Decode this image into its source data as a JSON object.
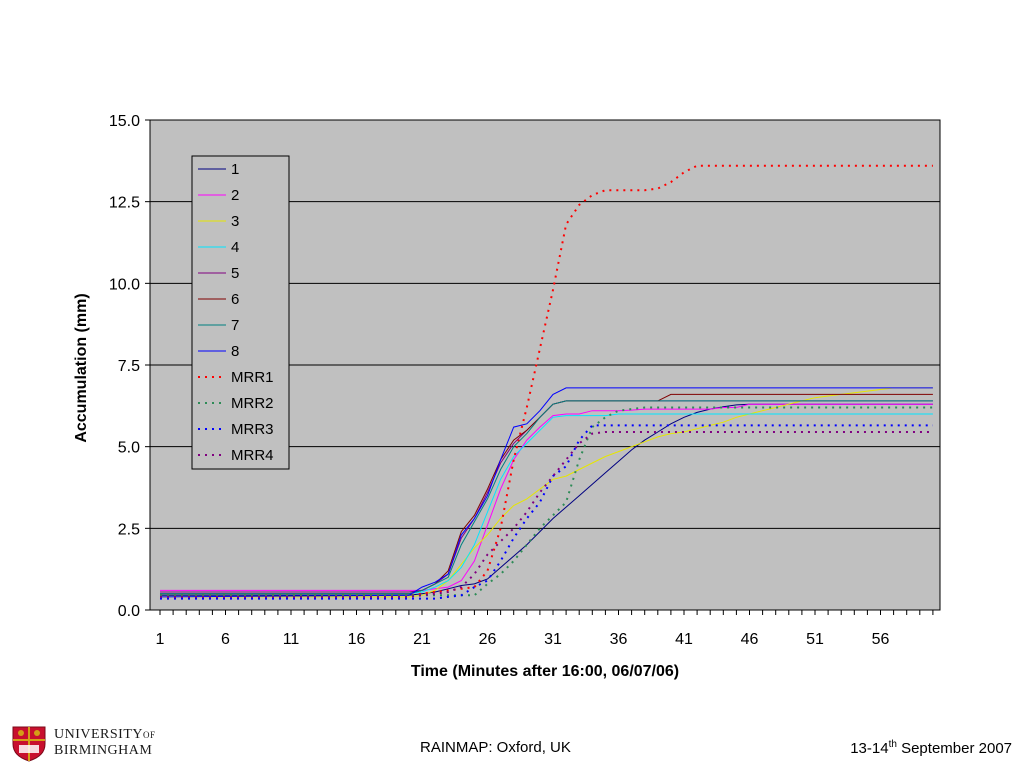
{
  "chart_data": {
    "type": "line",
    "xlabel": "Time (Minutes after 16:00, 06/07/06)",
    "ylabel": "Accumulation (mm)",
    "xlim": [
      1,
      60
    ],
    "ylim": [
      0,
      15
    ],
    "y_ticks": [
      "0.0",
      "2.5",
      "5.0",
      "7.5",
      "10.0",
      "12.5",
      "15.0"
    ],
    "x_ticks": [
      "1",
      "6",
      "11",
      "16",
      "21",
      "26",
      "31",
      "36",
      "41",
      "46",
      "51",
      "56"
    ],
    "grid": "horizontal",
    "background": "#c0c0c0",
    "legend_position": "top-left",
    "series": [
      {
        "name": "1",
        "color": "#000080",
        "style": "solid",
        "x": [
          1,
          19,
          20,
          21,
          22,
          23,
          24,
          25,
          26,
          27,
          28,
          29,
          30,
          31,
          32,
          33,
          34,
          35,
          36,
          37,
          38,
          39,
          40,
          41,
          42,
          43,
          44,
          45,
          46,
          47,
          48,
          49,
          50,
          51,
          52,
          53,
          54,
          55,
          56,
          57,
          58,
          59,
          60
        ],
        "y": [
          0.45,
          0.45,
          0.45,
          0.5,
          0.55,
          0.65,
          0.75,
          0.8,
          0.95,
          1.3,
          1.65,
          2.0,
          2.4,
          2.8,
          3.15,
          3.5,
          3.85,
          4.2,
          4.55,
          4.9,
          5.2,
          5.45,
          5.7,
          5.9,
          6.05,
          6.15,
          6.22,
          6.28,
          6.3,
          6.3,
          6.3,
          6.3,
          6.3,
          6.3,
          6.3,
          6.3,
          6.3,
          6.3,
          6.3,
          6.3,
          6.3,
          6.3,
          6.3
        ]
      },
      {
        "name": "2",
        "color": "#ff00ff",
        "style": "solid",
        "x": [
          1,
          20,
          21,
          22,
          23,
          24,
          25,
          26,
          27,
          28,
          29,
          30,
          31,
          32,
          33,
          34,
          35,
          36,
          37,
          38,
          39,
          40,
          41,
          42,
          43,
          44,
          45,
          46,
          47,
          48,
          49,
          50,
          51,
          52,
          53,
          54,
          55,
          56,
          57,
          58,
          59,
          60
        ],
        "y": [
          0.6,
          0.6,
          0.6,
          0.65,
          0.7,
          0.9,
          1.5,
          2.6,
          3.7,
          4.6,
          5.2,
          5.6,
          5.95,
          6.0,
          6.0,
          6.1,
          6.1,
          6.1,
          6.12,
          6.15,
          6.15,
          6.15,
          6.15,
          6.15,
          6.15,
          6.2,
          6.2,
          6.3,
          6.3,
          6.3,
          6.3,
          6.3,
          6.3,
          6.3,
          6.3,
          6.3,
          6.3,
          6.3,
          6.3,
          6.3,
          6.3,
          6.3
        ]
      },
      {
        "name": "3",
        "color": "#e6e600",
        "style": "solid",
        "x": [
          1,
          20,
          21,
          22,
          23,
          24,
          25,
          26,
          27,
          28,
          29,
          30,
          31,
          32,
          33,
          34,
          35,
          36,
          37,
          38,
          39,
          40,
          41,
          42,
          43,
          44,
          45,
          46,
          47,
          48,
          49,
          50,
          51,
          52,
          53,
          54,
          55,
          56,
          57,
          58,
          59,
          60
        ],
        "y": [
          0.4,
          0.4,
          0.45,
          0.6,
          0.9,
          1.4,
          1.9,
          2.3,
          2.8,
          3.2,
          3.4,
          3.7,
          4.0,
          4.1,
          4.3,
          4.5,
          4.7,
          4.85,
          5.0,
          5.15,
          5.3,
          5.4,
          5.45,
          5.55,
          5.65,
          5.75,
          5.9,
          6.0,
          6.1,
          6.2,
          6.3,
          6.4,
          6.5,
          6.55,
          6.6,
          6.65,
          6.7,
          6.75,
          6.8,
          6.8,
          6.8,
          6.8
        ]
      },
      {
        "name": "4",
        "color": "#00e6ff",
        "style": "solid",
        "x": [
          1,
          20,
          21,
          22,
          23,
          24,
          25,
          26,
          27,
          28,
          29,
          30,
          31,
          32,
          33,
          34,
          35,
          36,
          37,
          38,
          39,
          40,
          41,
          42,
          43,
          44,
          45,
          46,
          47,
          48,
          49,
          50,
          51,
          52,
          53,
          54,
          55,
          56,
          57,
          58,
          59,
          60
        ],
        "y": [
          0.5,
          0.5,
          0.55,
          0.7,
          0.9,
          1.3,
          2.0,
          3.0,
          4.0,
          4.7,
          5.1,
          5.5,
          5.9,
          5.95,
          5.95,
          5.95,
          5.95,
          6.0,
          6.0,
          6.0,
          6.0,
          6.0,
          6.0,
          6.0,
          6.0,
          6.0,
          6.0,
          6.0,
          6.0,
          6.0,
          6.0,
          6.0,
          6.0,
          6.0,
          6.0,
          6.0,
          6.0,
          6.0,
          6.0,
          6.0,
          6.0,
          6.0
        ]
      },
      {
        "name": "5",
        "color": "#800080",
        "style": "solid",
        "x": [
          1,
          20,
          21,
          22,
          23,
          24,
          25,
          26,
          27,
          28,
          29,
          30,
          31,
          32,
          33,
          34,
          35,
          36,
          37,
          38,
          39,
          40,
          41,
          42,
          43,
          44,
          45,
          46,
          47,
          48,
          49,
          50,
          51,
          52,
          53,
          54,
          55,
          56,
          57,
          58,
          59,
          60
        ],
        "y": [
          0.55,
          0.55,
          0.6,
          0.8,
          1.1,
          2.2,
          2.8,
          3.6,
          4.5,
          5.1,
          5.5,
          5.9,
          6.3,
          6.4,
          6.4,
          6.4,
          6.4,
          6.4,
          6.4,
          6.4,
          6.4,
          6.4,
          6.4,
          6.4,
          6.4,
          6.4,
          6.4,
          6.4,
          6.4,
          6.4,
          6.4,
          6.4,
          6.4,
          6.4,
          6.4,
          6.4,
          6.4,
          6.4,
          6.4,
          6.4,
          6.4,
          6.4
        ]
      },
      {
        "name": "6",
        "color": "#800000",
        "style": "solid",
        "x": [
          1,
          20,
          21,
          22,
          23,
          24,
          25,
          26,
          27,
          28,
          29,
          30,
          31,
          32,
          33,
          34,
          35,
          36,
          37,
          38,
          39,
          40,
          41,
          42,
          43,
          44,
          45,
          46,
          47,
          48,
          49,
          50,
          51,
          52,
          53,
          54,
          55,
          56,
          57,
          58,
          59,
          60
        ],
        "y": [
          0.5,
          0.5,
          0.6,
          0.8,
          1.2,
          2.4,
          2.9,
          3.7,
          4.6,
          5.2,
          5.5,
          5.9,
          6.3,
          6.4,
          6.4,
          6.4,
          6.4,
          6.4,
          6.4,
          6.4,
          6.4,
          6.6,
          6.6,
          6.6,
          6.6,
          6.6,
          6.6,
          6.6,
          6.6,
          6.6,
          6.6,
          6.6,
          6.6,
          6.6,
          6.6,
          6.6,
          6.6,
          6.6,
          6.6,
          6.6,
          6.6,
          6.6
        ]
      },
      {
        "name": "7",
        "color": "#008080",
        "style": "solid",
        "x": [
          1,
          20,
          21,
          22,
          23,
          24,
          25,
          26,
          27,
          28,
          29,
          30,
          31,
          32,
          33,
          34,
          35,
          36,
          37,
          38,
          39,
          40,
          41,
          42,
          43,
          44,
          45,
          46,
          47,
          48,
          49,
          50,
          51,
          52,
          53,
          54,
          55,
          56,
          57,
          58,
          59,
          60
        ],
        "y": [
          0.5,
          0.5,
          0.6,
          0.8,
          1.0,
          2.0,
          2.7,
          3.4,
          4.3,
          5.0,
          5.4,
          5.9,
          6.3,
          6.4,
          6.4,
          6.4,
          6.4,
          6.4,
          6.4,
          6.4,
          6.4,
          6.4,
          6.4,
          6.4,
          6.4,
          6.4,
          6.4,
          6.4,
          6.4,
          6.4,
          6.4,
          6.4,
          6.4,
          6.4,
          6.4,
          6.4,
          6.4,
          6.4,
          6.4,
          6.4,
          6.4,
          6.4
        ]
      },
      {
        "name": "8",
        "color": "#0000ff",
        "style": "solid",
        "x": [
          1,
          20,
          21,
          22,
          23,
          24,
          25,
          26,
          27,
          28,
          29,
          30,
          31,
          32,
          33,
          34,
          35,
          36,
          37,
          38,
          39,
          40,
          41,
          42,
          43,
          44,
          45,
          46,
          47,
          48,
          49,
          50,
          51,
          52,
          53,
          54,
          55,
          56,
          57,
          58,
          59,
          60
        ],
        "y": [
          0.4,
          0.45,
          0.7,
          0.85,
          1.1,
          2.3,
          2.8,
          3.5,
          4.6,
          5.6,
          5.7,
          6.1,
          6.6,
          6.8,
          6.8,
          6.8,
          6.8,
          6.8,
          6.8,
          6.8,
          6.8,
          6.8,
          6.8,
          6.8,
          6.8,
          6.8,
          6.8,
          6.8,
          6.8,
          6.8,
          6.8,
          6.8,
          6.8,
          6.8,
          6.8,
          6.8,
          6.8,
          6.8,
          6.8,
          6.8,
          6.8,
          6.8
        ]
      },
      {
        "name": "MRR1",
        "color": "#ff0000",
        "style": "dotted",
        "x": [
          1,
          20,
          21,
          22,
          23,
          24,
          25,
          26,
          27,
          28,
          29,
          30,
          31,
          32,
          33,
          34,
          35,
          36,
          37,
          38,
          39,
          40,
          41,
          42,
          43,
          44,
          45,
          46,
          47,
          48,
          49,
          50,
          51,
          52,
          53,
          54,
          55,
          56,
          57,
          58,
          59,
          60
        ],
        "y": [
          0.45,
          0.45,
          0.5,
          0.55,
          0.6,
          0.65,
          0.7,
          1.2,
          2.5,
          4.6,
          6.2,
          8.0,
          9.8,
          11.8,
          12.4,
          12.7,
          12.85,
          12.85,
          12.85,
          12.85,
          12.9,
          13.1,
          13.4,
          13.6,
          13.6,
          13.6,
          13.6,
          13.6,
          13.6,
          13.6,
          13.6,
          13.6,
          13.6,
          13.6,
          13.6,
          13.6,
          13.6,
          13.6,
          13.6,
          13.6,
          13.6,
          13.6
        ]
      },
      {
        "name": "MRR2",
        "color": "#2e8b57",
        "style": "dotted",
        "x": [
          1,
          20,
          21,
          22,
          23,
          24,
          25,
          26,
          27,
          28,
          29,
          30,
          31,
          32,
          33,
          34,
          35,
          36,
          37,
          38,
          39,
          40,
          41,
          42,
          43,
          44,
          45,
          46,
          47,
          48,
          49,
          50,
          51,
          52,
          53,
          54,
          55,
          56,
          57,
          58,
          59,
          60
        ],
        "y": [
          0.45,
          0.45,
          0.45,
          0.45,
          0.45,
          0.45,
          0.45,
          0.8,
          1.1,
          1.5,
          2.0,
          2.5,
          2.9,
          3.3,
          4.6,
          5.6,
          5.9,
          6.1,
          6.15,
          6.2,
          6.2,
          6.2,
          6.2,
          6.2,
          6.2,
          6.2,
          6.2,
          6.2,
          6.2,
          6.2,
          6.2,
          6.2,
          6.2,
          6.2,
          6.2,
          6.2,
          6.2,
          6.2,
          6.2,
          6.2,
          6.2,
          6.2
        ]
      },
      {
        "name": "MRR3",
        "color": "#0000ff",
        "style": "dotted",
        "x": [
          1,
          20,
          21,
          22,
          23,
          24,
          25,
          26,
          27,
          28,
          29,
          30,
          31,
          32,
          33,
          34,
          35,
          36,
          37,
          38,
          39,
          40,
          41,
          42,
          43,
          44,
          45,
          46,
          47,
          48,
          49,
          50,
          51,
          52,
          53,
          54,
          55,
          56,
          57,
          58,
          59,
          60
        ],
        "y": [
          0.35,
          0.35,
          0.35,
          0.35,
          0.4,
          0.45,
          0.7,
          0.9,
          1.5,
          2.2,
          2.8,
          3.3,
          4.1,
          4.4,
          5.2,
          5.65,
          5.65,
          5.65,
          5.65,
          5.65,
          5.65,
          5.65,
          5.65,
          5.65,
          5.65,
          5.65,
          5.65,
          5.65,
          5.65,
          5.65,
          5.65,
          5.65,
          5.65,
          5.65,
          5.65,
          5.65,
          5.65,
          5.65,
          5.65,
          5.65,
          5.65,
          5.65
        ]
      },
      {
        "name": "MRR4",
        "color": "#800080",
        "style": "dotted",
        "x": [
          1,
          20,
          21,
          22,
          23,
          24,
          25,
          26,
          27,
          28,
          29,
          30,
          31,
          32,
          33,
          34,
          35,
          36,
          37,
          38,
          39,
          40,
          41,
          42,
          43,
          44,
          45,
          46,
          47,
          48,
          49,
          50,
          51,
          52,
          53,
          54,
          55,
          56,
          57,
          58,
          59,
          60
        ],
        "y": [
          0.4,
          0.4,
          0.45,
          0.5,
          0.55,
          0.7,
          1.1,
          1.7,
          2.1,
          2.5,
          3.0,
          3.6,
          4.1,
          4.6,
          5.1,
          5.4,
          5.45,
          5.45,
          5.45,
          5.45,
          5.45,
          5.45,
          5.45,
          5.45,
          5.45,
          5.45,
          5.45,
          5.45,
          5.45,
          5.45,
          5.45,
          5.45,
          5.45,
          5.45,
          5.45,
          5.45,
          5.45,
          5.45,
          5.45,
          5.45,
          5.45,
          5.45
        ]
      }
    ]
  },
  "footer": {
    "university_line1": "UNIVERSITY",
    "university_of": "OF",
    "university_line2": "BIRMINGHAM",
    "center_text": "RAINMAP: Oxford, UK",
    "date_prefix": "13-14",
    "date_sup": "th",
    "date_suffix": " September 2007"
  },
  "colors": {
    "plot_background": "#c0c0c0",
    "gridline": "#000000",
    "logo_red": "#c8102e",
    "logo_gold": "#d4a017"
  }
}
